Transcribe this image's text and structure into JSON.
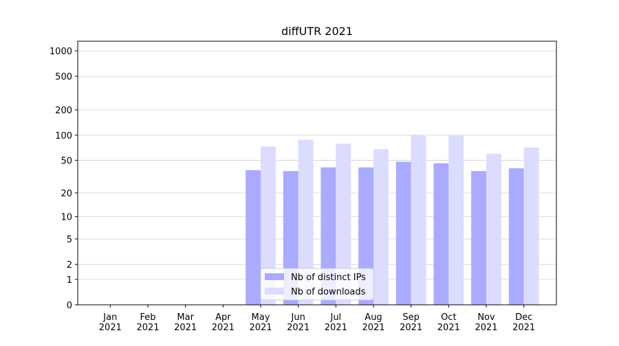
{
  "chart_data": {
    "type": "bar",
    "title": "diffUTR 2021",
    "categories": [
      "Jan\n2021",
      "Feb\n2021",
      "Mar\n2021",
      "Apr\n2021",
      "May\n2021",
      "Jun\n2021",
      "Jul\n2021",
      "Aug\n2021",
      "Sep\n2021",
      "Oct\n2021",
      "Nov\n2021",
      "Dec\n2021"
    ],
    "series": [
      {
        "name": "Nb of distinct IPs",
        "color": "#aaaaff",
        "values": [
          0,
          0,
          0,
          0,
          38,
          37,
          41,
          41,
          48,
          46,
          37,
          40
        ]
      },
      {
        "name": "Nb of downloads",
        "color": "#dcdcff",
        "values": [
          0,
          0,
          0,
          0,
          73,
          88,
          79,
          68,
          100,
          100,
          60,
          71
        ]
      }
    ],
    "ylim": [
      0,
      1300
    ],
    "yticks": [
      0,
      1,
      2,
      5,
      10,
      20,
      50,
      100,
      200,
      500,
      1000
    ],
    "yscale": "log1p",
    "grid": true,
    "legend": "lower center"
  }
}
